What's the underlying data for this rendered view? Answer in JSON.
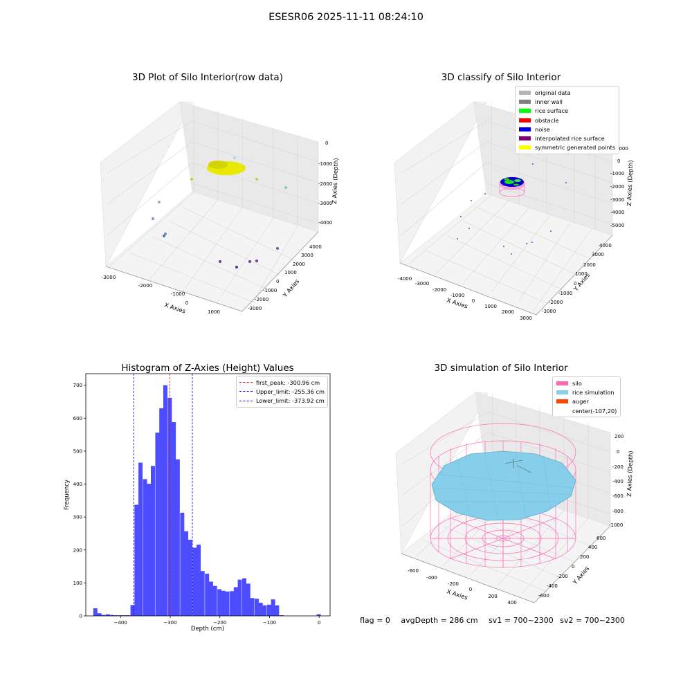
{
  "figure": {
    "suptitle": "ESESR06 2025-11-11 08:24:10"
  },
  "panel1": {
    "title": "3D Plot of Silo Interior(row data)",
    "xlabel": "X Axies",
    "ylabel": "Y Axies",
    "zlabel": "Z Axies (Depth)",
    "xticks": [
      "-3000",
      "-2000",
      "-1000",
      "0",
      "1000"
    ],
    "yticks": [
      "-3000",
      "-2000",
      "-1000",
      "0",
      "1000",
      "2000",
      "3000",
      "4000"
    ],
    "zticks": [
      "0",
      "-1000",
      "-2000",
      "-3000",
      "-4000"
    ]
  },
  "panel2": {
    "title": "3D classify of Silo Interior",
    "xlabel": "X Axies",
    "ylabel": "Y Axies",
    "zlabel": "Z Axies (Depth)",
    "xticks": [
      "-4000",
      "-3000",
      "-2000",
      "-1000",
      "0",
      "1000",
      "2000",
      "3000"
    ],
    "yticks": [
      "-3000",
      "-2000",
      "-1000",
      "0",
      "1000",
      "2000",
      "3000",
      "4000"
    ],
    "zticks": [
      "1000",
      "0",
      "-1000",
      "-2000",
      "-3000",
      "-4000",
      "-5000"
    ],
    "legend": [
      {
        "label": "original data",
        "color": "#b3b3b3"
      },
      {
        "label": "inner wall",
        "color": "#808080"
      },
      {
        "label": "rice surface",
        "color": "#00ff00"
      },
      {
        "label": "obstacle",
        "color": "#ff0000"
      },
      {
        "label": "noise",
        "color": "#0000dd"
      },
      {
        "label": "interpolated rice surface",
        "color": "#800080"
      },
      {
        "label": "symmetric generated points",
        "color": "#ffff00"
      }
    ]
  },
  "panel4": {
    "title": "3D simulation of Silo Interior",
    "xlabel": "X Axies",
    "ylabel": "Y Axies",
    "zlabel": "Z Axies (Depth)",
    "xticks": [
      "-600",
      "-400",
      "-200",
      "0",
      "200",
      "400"
    ],
    "yticks": [
      "-600",
      "-400",
      "-200",
      "0",
      "200",
      "400",
      "600"
    ],
    "zticks": [
      "200",
      "0",
      "-200",
      "-400",
      "-600",
      "-800",
      "-1000"
    ],
    "legend": [
      {
        "label": "silo",
        "color": "#ff69b4"
      },
      {
        "label": "rice simulation",
        "color": "#87ceeb"
      },
      {
        "label": "auger",
        "color": "#ff4500"
      },
      {
        "label": "center(-107,20)",
        "color": ""
      }
    ]
  },
  "footer": {
    "flag": "flag = 0",
    "avg": "avgDepth = 286 cm",
    "sv1": "sv1 = 700~2300",
    "sv2": "sv2 = 700~2300"
  },
  "colors": {
    "hist_bar": "#4d4dff",
    "peak_line": "#ff0000",
    "limit_line": "#0000ff",
    "silo": "#ff69b4",
    "rice": "#87ceeb"
  },
  "chart_data": {
    "type": "bar",
    "title": "Histogram of Z-Axies (Height) Values",
    "xlabel": "Depth (cm)",
    "ylabel": "Frequency",
    "xlim": [
      -470,
      22
    ],
    "ylim": [
      0,
      735
    ],
    "xticks": [
      -400,
      -300,
      -200,
      -100,
      0
    ],
    "yticks": [
      0,
      100,
      200,
      300,
      400,
      500,
      600,
      700
    ],
    "bin_width": 8.33,
    "bins": [
      {
        "x0": -455,
        "v": 23
      },
      {
        "x0": -447,
        "v": 8
      },
      {
        "x0": -439,
        "v": 3
      },
      {
        "x0": -430,
        "v": 5
      },
      {
        "x0": -422,
        "v": 3
      },
      {
        "x0": -414,
        "v": 2
      },
      {
        "x0": -405,
        "v": 2
      },
      {
        "x0": -397,
        "v": 2
      },
      {
        "x0": -389,
        "v": 2
      },
      {
        "x0": -380,
        "v": 33
      },
      {
        "x0": -372,
        "v": 337
      },
      {
        "x0": -364,
        "v": 465
      },
      {
        "x0": -355,
        "v": 415
      },
      {
        "x0": -347,
        "v": 401
      },
      {
        "x0": -339,
        "v": 455
      },
      {
        "x0": -330,
        "v": 556
      },
      {
        "x0": -322,
        "v": 630
      },
      {
        "x0": -314,
        "v": 700
      },
      {
        "x0": -305,
        "v": 662
      },
      {
        "x0": -297,
        "v": 588
      },
      {
        "x0": -289,
        "v": 475
      },
      {
        "x0": -280,
        "v": 313
      },
      {
        "x0": -272,
        "v": 257
      },
      {
        "x0": -264,
        "v": 231
      },
      {
        "x0": -255,
        "v": 207
      },
      {
        "x0": -247,
        "v": 216
      },
      {
        "x0": -239,
        "v": 136
      },
      {
        "x0": -230,
        "v": 128
      },
      {
        "x0": -222,
        "v": 104
      },
      {
        "x0": -214,
        "v": 91
      },
      {
        "x0": -205,
        "v": 81
      },
      {
        "x0": -197,
        "v": 76
      },
      {
        "x0": -189,
        "v": 74
      },
      {
        "x0": -180,
        "v": 75
      },
      {
        "x0": -172,
        "v": 87
      },
      {
        "x0": -164,
        "v": 110
      },
      {
        "x0": -155,
        "v": 114
      },
      {
        "x0": -147,
        "v": 98
      },
      {
        "x0": -139,
        "v": 54
      },
      {
        "x0": -130,
        "v": 52
      },
      {
        "x0": -122,
        "v": 40
      },
      {
        "x0": -114,
        "v": 32
      },
      {
        "x0": -105,
        "v": 34
      },
      {
        "x0": -97,
        "v": 50
      },
      {
        "x0": -89,
        "v": 32
      },
      {
        "x0": -80,
        "v": 2
      },
      {
        "x0": -5,
        "v": 5
      }
    ],
    "vlines": [
      {
        "x": -300.96,
        "label": "first_peak: -300.96 cm",
        "color": "#ff0000"
      },
      {
        "x": -255.36,
        "label": "Upper_limit: -255.36 cm",
        "color": "#0000ff"
      },
      {
        "x": -373.92,
        "label": "Lower_limit: -373.92 cm",
        "color": "#0000ff"
      }
    ]
  }
}
